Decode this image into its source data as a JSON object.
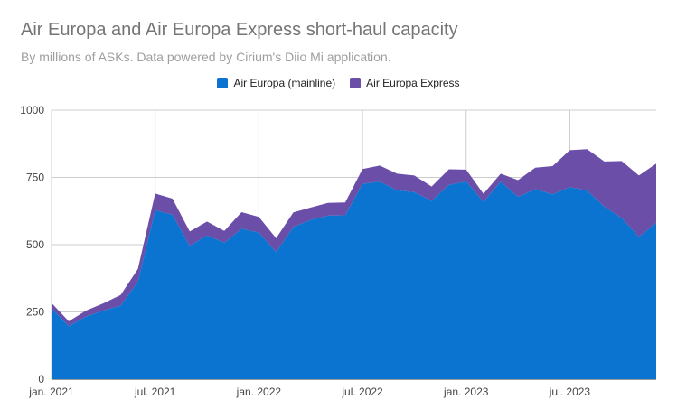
{
  "title": "Air Europa and Air Europa Express short-haul capacity",
  "subtitle": "By millions of ASKs. Data powered by Cirium's Diio Mi application.",
  "chart_data": {
    "type": "area",
    "stacked": true,
    "title": "Air Europa and Air Europa Express short-haul capacity",
    "subtitle": "By millions of ASKs. Data powered by Cirium's Diio Mi application.",
    "xlabel": "",
    "ylabel": "",
    "ylim": [
      0,
      1000
    ],
    "yticks": [
      0,
      250,
      500,
      750,
      1000
    ],
    "x_tick_labels": [
      "jan. 2021",
      "jul. 2021",
      "jan. 2022",
      "jul. 2022",
      "jan. 2023",
      "jul. 2023"
    ],
    "x_tick_indices": [
      0,
      6,
      12,
      18,
      24,
      30
    ],
    "grid": true,
    "legend_position": "top",
    "x": [
      "2021-01",
      "2021-02",
      "2021-03",
      "2021-04",
      "2021-05",
      "2021-06",
      "2021-07",
      "2021-08",
      "2021-09",
      "2021-10",
      "2021-11",
      "2021-12",
      "2022-01",
      "2022-02",
      "2022-03",
      "2022-04",
      "2022-05",
      "2022-06",
      "2022-07",
      "2022-08",
      "2022-09",
      "2022-10",
      "2022-11",
      "2022-12",
      "2023-01",
      "2023-02",
      "2023-03",
      "2023-04",
      "2023-05",
      "2023-06",
      "2023-07",
      "2023-08",
      "2023-09",
      "2023-10",
      "2023-11",
      "2023-12"
    ],
    "series": [
      {
        "name": "Air Europa (mainline)",
        "color": "#0b74d0",
        "values": [
          263,
          197,
          233,
          255,
          273,
          362,
          628,
          611,
          496,
          534,
          507,
          559,
          545,
          472,
          566,
          592,
          608,
          609,
          726,
          734,
          702,
          695,
          663,
          722,
          735,
          659,
          734,
          678,
          706,
          687,
          714,
          701,
          641,
          599,
          529,
          581
        ]
      },
      {
        "name": "Air Europa Express",
        "color": "#6a4ea8",
        "values": [
          20,
          18,
          22,
          27,
          40,
          48,
          62,
          60,
          53,
          52,
          44,
          62,
          58,
          52,
          54,
          46,
          47,
          48,
          55,
          60,
          62,
          62,
          53,
          58,
          44,
          30,
          30,
          62,
          80,
          105,
          137,
          154,
          168,
          212,
          228,
          220
        ]
      }
    ]
  }
}
